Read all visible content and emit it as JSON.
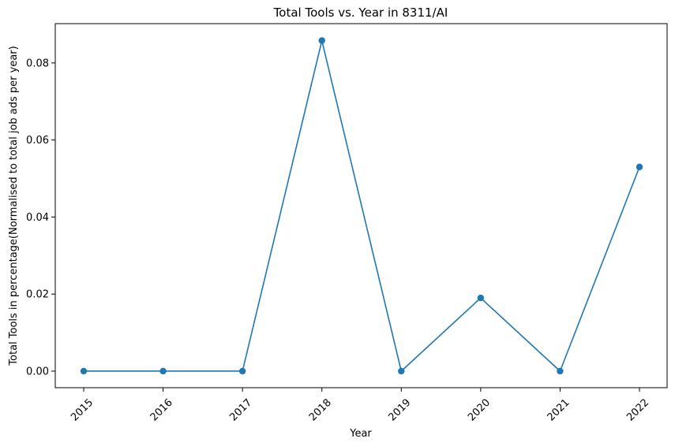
{
  "chart_data": {
    "type": "line",
    "title": "Total Tools vs. Year in 8311/AI",
    "xlabel": "Year",
    "ylabel": "Total Tools in percentage(Normalised to total job ads per year)",
    "categories": [
      "2015",
      "2016",
      "2017",
      "2018",
      "2019",
      "2020",
      "2021",
      "2022"
    ],
    "series": [
      {
        "values": [
          0.0,
          0.0,
          0.0,
          0.0858,
          0.0,
          0.019,
          0.0,
          0.053
        ]
      }
    ],
    "ylim": [
      -0.0043,
      0.0902
    ],
    "yticks": [
      "0.00",
      "0.02",
      "0.04",
      "0.06",
      "0.08"
    ],
    "line_color": "#1f77b4",
    "marker": "circle",
    "grid": false,
    "x_tick_rotation": 45
  }
}
